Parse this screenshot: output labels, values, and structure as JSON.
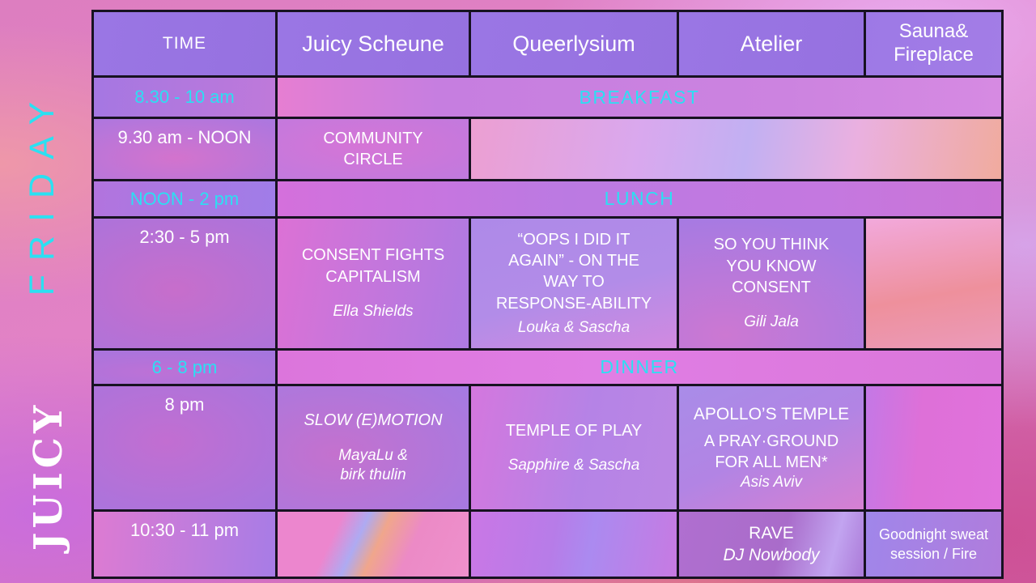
{
  "brand": {
    "weekday": "FRIDAY",
    "logo": "JUICY"
  },
  "colors": {
    "accent_cyan": "#2be0f2",
    "header_purple": "#9873e2",
    "grid_border": "#171221",
    "text_white": "#ffffff"
  },
  "table": {
    "columns": {
      "time": "TIME",
      "juicy_scheune": "Juicy Scheune",
      "queerlysium": "Queerlysium",
      "atelier": "Atelier",
      "sauna_fireplace": "Sauna&\nFireplace"
    },
    "rows": {
      "breakfast": {
        "time": "8.30 - 10 am",
        "label": "BREAKFAST"
      },
      "morning": {
        "time": "9.30 am - NOON",
        "juicy_scheune": {
          "title": "COMMUNITY\nCIRCLE"
        }
      },
      "lunch": {
        "time": "NOON - 2 pm",
        "label": "LUNCH"
      },
      "afternoon": {
        "time": "2:30 - 5 pm",
        "juicy_scheune": {
          "title": "CONSENT FIGHTS\nCAPITALISM",
          "host": "Ella Shields"
        },
        "queerlysium": {
          "title": "“OOPS I DID IT\nAGAIN” - ON THE\nWAY TO\nRESPONSE-ABILITY",
          "host": "Louka & Sascha"
        },
        "atelier": {
          "title": "SO YOU THINK\nYOU KNOW\nCONSENT",
          "host": "Gili Jala"
        }
      },
      "dinner": {
        "time": "6 - 8 pm",
        "label": "DINNER"
      },
      "evening": {
        "time": "8 pm",
        "juicy_scheune": {
          "title": "SLOW (E)MOTION",
          "host": "MayaLu &\nbirk thulin"
        },
        "queerlysium": {
          "title": "TEMPLE OF PLAY",
          "host": "Sapphire & Sascha"
        },
        "atelier": {
          "title": "APOLLO’S TEMPLE",
          "subtitle": "A PRAY·GROUND\nFOR ALL MEN*",
          "host": "Asis Aviv"
        }
      },
      "late": {
        "time": "10:30 - 11 pm",
        "atelier": {
          "title": "RAVE",
          "host": "DJ Nowbody"
        },
        "sauna_fireplace": {
          "title": "Goodnight sweat\nsession / Fire"
        }
      }
    }
  }
}
